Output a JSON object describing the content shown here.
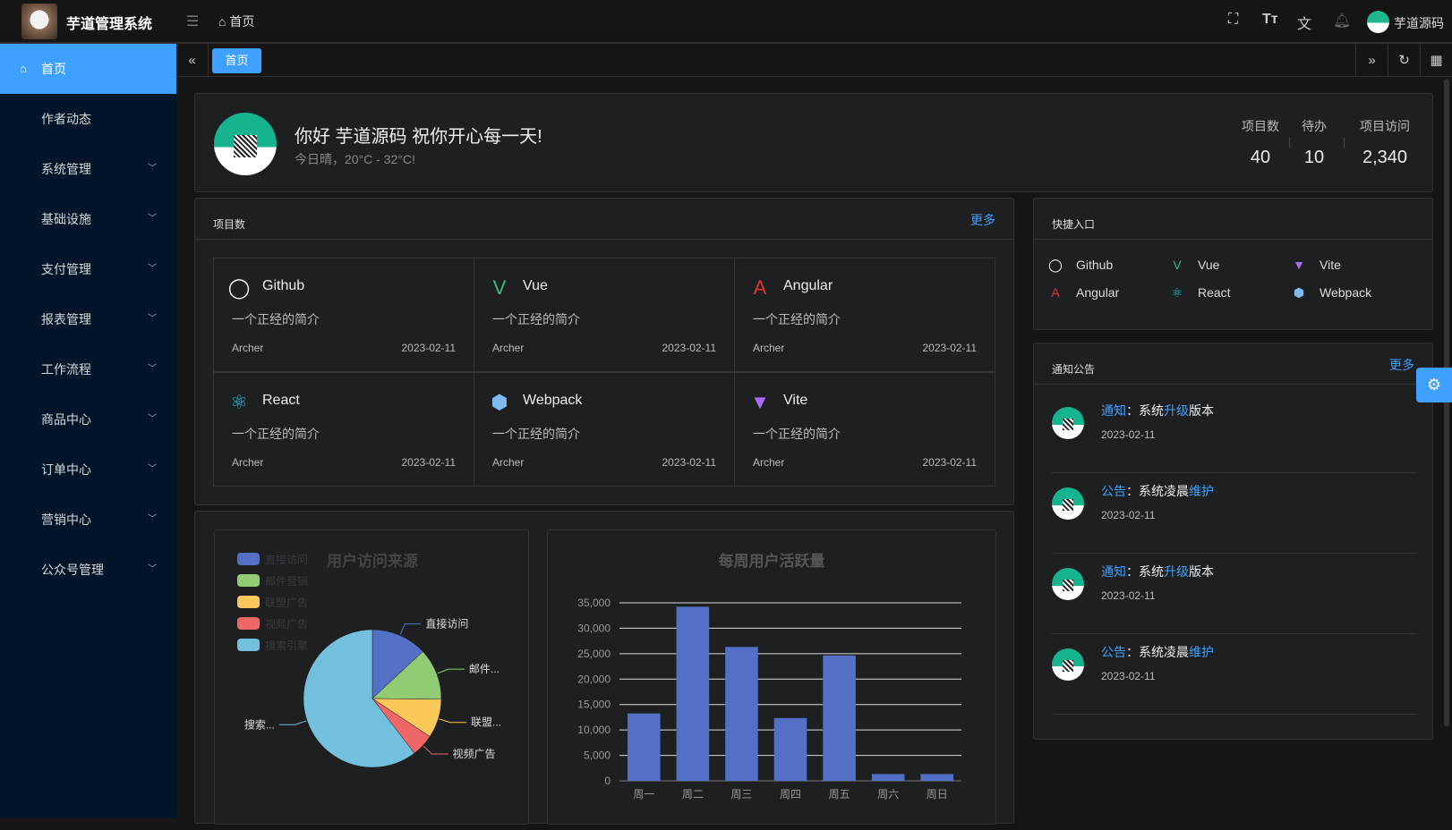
{
  "header": {
    "app_title": "芋道管理系统",
    "breadcrumb": "首页",
    "user_name": "芋道源码"
  },
  "sidebar": {
    "items": [
      {
        "label": "首页",
        "active": true
      },
      {
        "label": "作者动态"
      },
      {
        "label": "系统管理"
      },
      {
        "label": "基础设施"
      },
      {
        "label": "支付管理"
      },
      {
        "label": "报表管理"
      },
      {
        "label": "工作流程"
      },
      {
        "label": "商品中心"
      },
      {
        "label": "订单中心"
      },
      {
        "label": "营销中心"
      },
      {
        "label": "公众号管理"
      }
    ]
  },
  "tabs": {
    "active": "首页"
  },
  "welcome": {
    "greeting": "你好 芋道源码 祝你开心每一天!",
    "weather": "今日晴，20°C - 32°C!",
    "stats": [
      {
        "label": "项目数",
        "value": "40"
      },
      {
        "label": "待办",
        "value": "10"
      },
      {
        "label": "项目访问",
        "value": "2,340"
      }
    ]
  },
  "projects": {
    "title": "项目数",
    "more": "更多",
    "items": [
      {
        "name": "Github",
        "icon": "github-icon",
        "desc": "一个正经的简介",
        "author": "Archer",
        "date": "2023-02-11"
      },
      {
        "name": "Vue",
        "icon": "vue-icon",
        "desc": "一个正经的简介",
        "author": "Archer",
        "date": "2023-02-11"
      },
      {
        "name": "Angular",
        "icon": "angular-icon",
        "desc": "一个正经的简介",
        "author": "Archer",
        "date": "2023-02-11"
      },
      {
        "name": "React",
        "icon": "react-icon",
        "desc": "一个正经的简介",
        "author": "Archer",
        "date": "2023-02-11"
      },
      {
        "name": "Webpack",
        "icon": "webpack-icon",
        "desc": "一个正经的简介",
        "author": "Archer",
        "date": "2023-02-11"
      },
      {
        "name": "Vite",
        "icon": "vite-icon",
        "desc": "一个正经的简介",
        "author": "Archer",
        "date": "2023-02-11"
      }
    ]
  },
  "shortcuts": {
    "title": "快捷入口",
    "items": [
      {
        "name": "Github"
      },
      {
        "name": "Vue"
      },
      {
        "name": "Vite"
      },
      {
        "name": "Angular"
      },
      {
        "name": "React"
      },
      {
        "name": "Webpack"
      }
    ]
  },
  "notices": {
    "title": "通知公告",
    "more": "更多",
    "items": [
      {
        "type": "通知",
        "p1": "：系统",
        "hl": "升级",
        "p2": "版本",
        "date": "2023-02-11"
      },
      {
        "type": "公告",
        "p1": "：系统凌晨",
        "hl": "维护",
        "p2": "",
        "date": "2023-02-11"
      },
      {
        "type": "通知",
        "p1": "：系统",
        "hl": "升级",
        "p2": "版本",
        "date": "2023-02-11"
      },
      {
        "type": "公告",
        "p1": "：系统凌晨",
        "hl": "维护",
        "p2": "",
        "date": "2023-02-11"
      }
    ]
  },
  "chart_data": [
    {
      "type": "pie",
      "title": "用户访问来源",
      "legend_position": "top-left",
      "categories": [
        "直接访问",
        "邮件营销",
        "联盟广告",
        "视频广告",
        "搜索引擎"
      ],
      "slice_labels": [
        "直接访问",
        "邮件...",
        "联盟...",
        "视频广告",
        "搜索..."
      ],
      "values": [
        335,
        310,
        234,
        135,
        1548
      ],
      "colors": [
        "#5470c6",
        "#91cc75",
        "#fac858",
        "#ee6666",
        "#73c0de"
      ]
    },
    {
      "type": "bar",
      "title": "每周用户活跃量",
      "categories": [
        "周一",
        "周二",
        "周三",
        "周四",
        "周五",
        "周六",
        "周日"
      ],
      "values": [
        13253,
        34235,
        26321,
        12340,
        24643,
        1322,
        1324
      ],
      "ylim": [
        0,
        35000
      ],
      "yticks": [
        "0",
        "5,000",
        "10,000",
        "15,000",
        "20,000",
        "25,000",
        "30,000",
        "35,000"
      ],
      "grid": true,
      "color": "#5470c6"
    }
  ]
}
